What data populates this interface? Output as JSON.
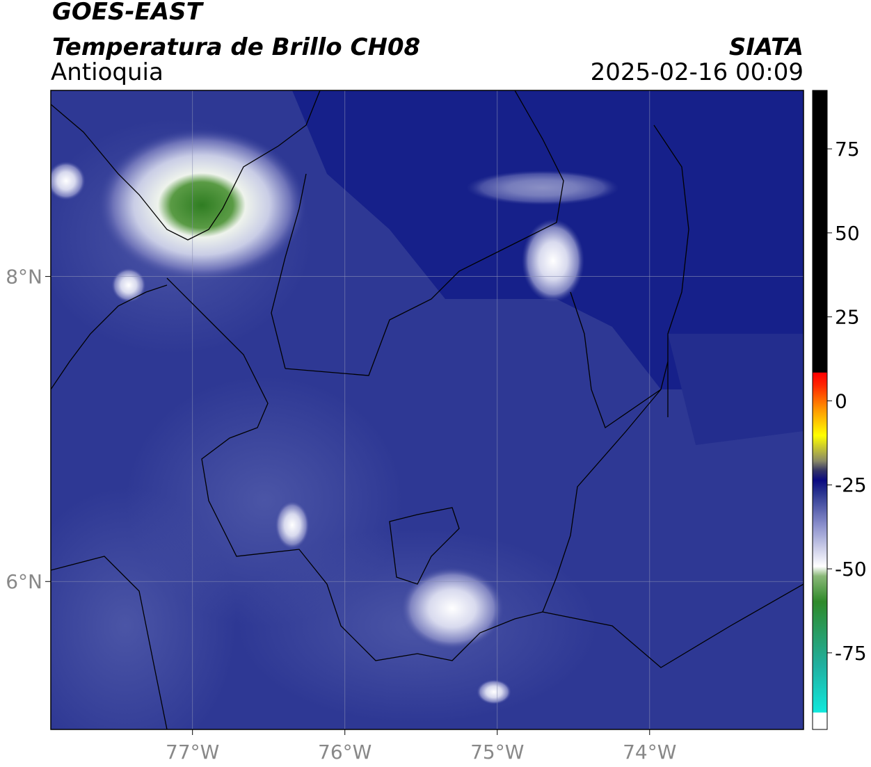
{
  "header": {
    "satellite": "GOES-EAST",
    "product": "Temperatura de Brillo CH08",
    "region": "Antioquia",
    "agency": "SIATA",
    "datetime": "2025-02-16 00:09"
  },
  "map": {
    "lon_range": [
      -77.93,
      -72.99
    ],
    "lat_range": [
      5.03,
      9.22
    ],
    "lon_ticks": [
      {
        "value": -77,
        "label": "77°W"
      },
      {
        "value": -76,
        "label": "76°W"
      },
      {
        "value": -75,
        "label": "75°W"
      },
      {
        "value": -74,
        "label": "74°W"
      }
    ],
    "lat_ticks": [
      {
        "value": 8,
        "label": "8°N"
      },
      {
        "value": 6,
        "label": "6°N"
      }
    ]
  },
  "colorbar": {
    "range": [
      -97.8,
      92.4
    ],
    "ticks": [
      75,
      50,
      25,
      0,
      -25,
      -50,
      -75
    ]
  }
}
